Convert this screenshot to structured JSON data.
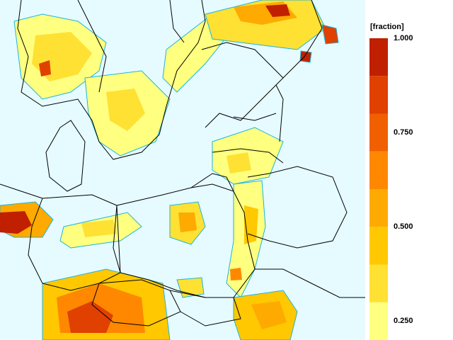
{
  "legend": {
    "unit_label": "[fraction]",
    "ticks": [
      {
        "label": "1.000",
        "value": 1.0
      },
      {
        "label": "0.750",
        "value": 0.75
      },
      {
        "label": "0.500",
        "value": 0.5
      },
      {
        "label": "0.250",
        "value": 0.25
      }
    ],
    "color_classes": [
      {
        "from": 0.2,
        "to": 0.3,
        "color": "#ffff80"
      },
      {
        "from": 0.3,
        "to": 0.4,
        "color": "#ffe133"
      },
      {
        "from": 0.4,
        "to": 0.5,
        "color": "#ffc800"
      },
      {
        "from": 0.5,
        "to": 0.6,
        "color": "#ffaa00"
      },
      {
        "from": 0.6,
        "to": 0.7,
        "color": "#ff8800"
      },
      {
        "from": 0.7,
        "to": 0.8,
        "color": "#f06000"
      },
      {
        "from": 0.8,
        "to": 0.9,
        "color": "#e04000"
      },
      {
        "from": 0.9,
        "to": 1.0,
        "color": "#c02000"
      }
    ]
  },
  "map": {
    "background_color": "#e6fbff",
    "contour_color": "#19b5e0",
    "border_color": "#000000"
  }
}
